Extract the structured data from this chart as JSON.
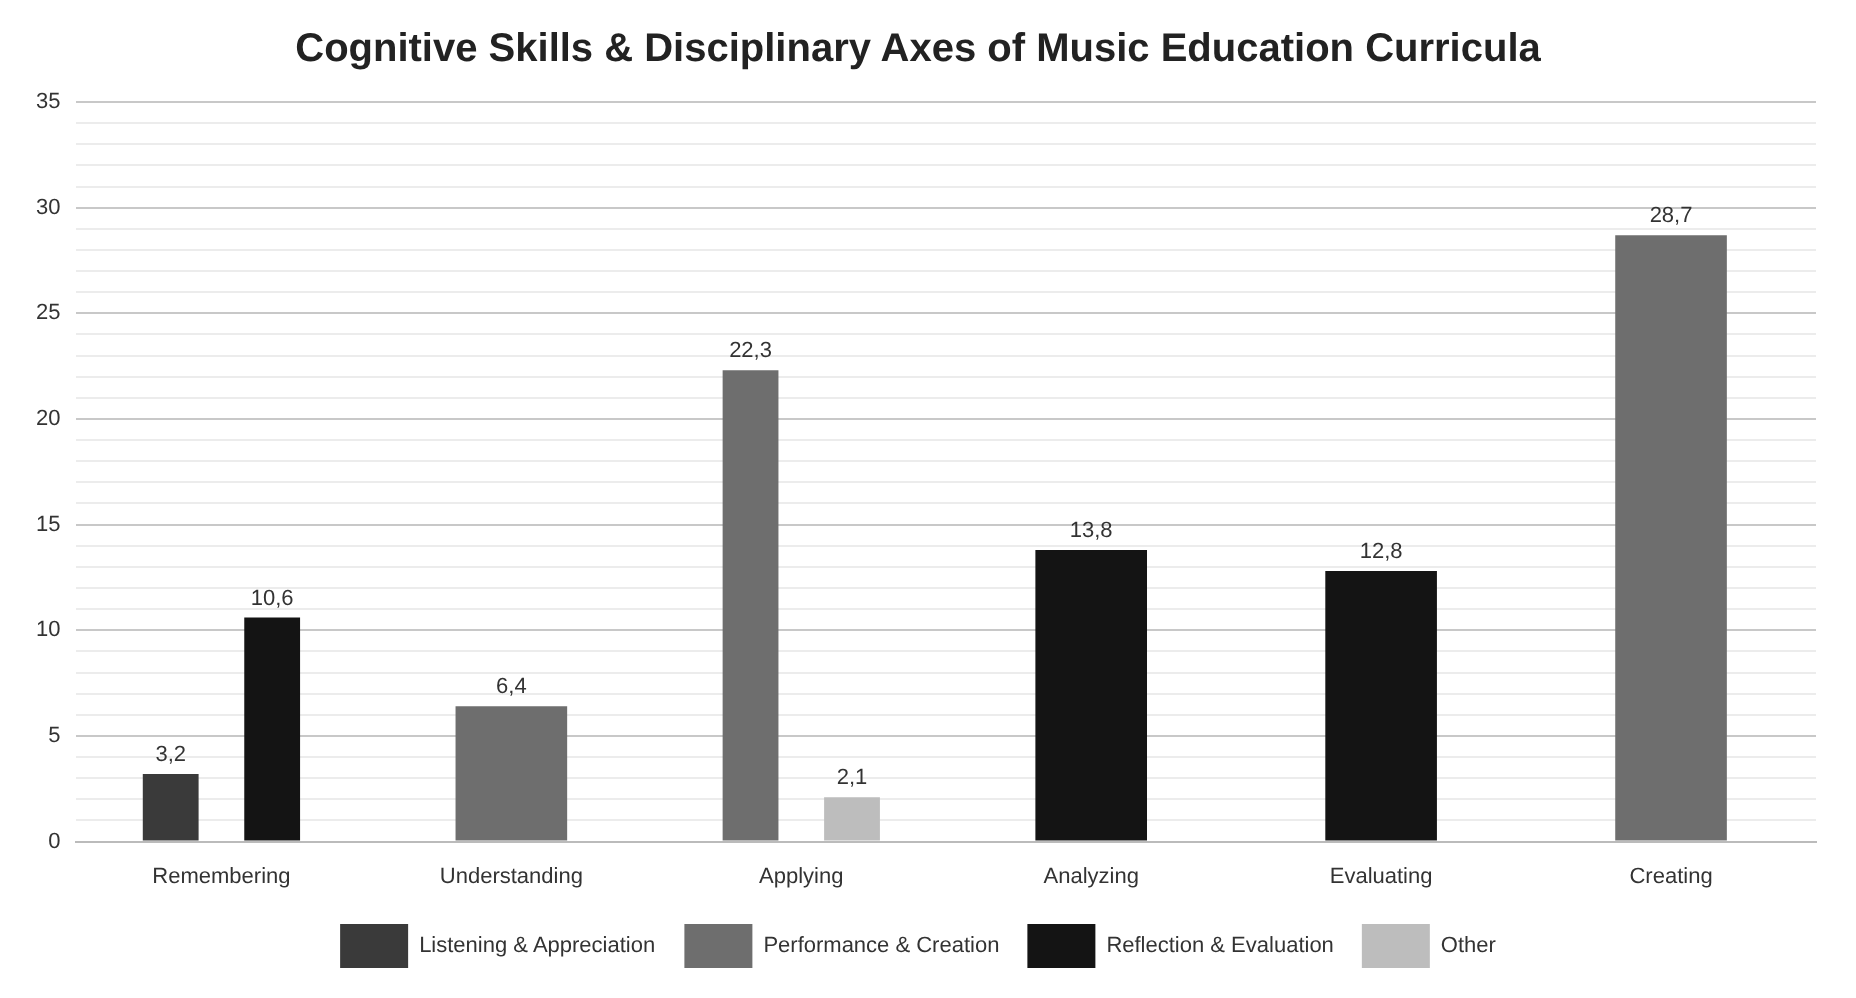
{
  "chart_data": {
    "type": "bar",
    "title": "Cognitive Skills & Disciplinary Axes of Music Education Curricula",
    "categories": [
      "Remembering",
      "Understanding",
      "Applying",
      "Analyzing",
      "Evaluating",
      "Creating"
    ],
    "series": [
      {
        "name": "Listening & Appreciation",
        "color": "#3a3a3a",
        "values": [
          3.2,
          null,
          null,
          null,
          null,
          null
        ],
        "value_labels": [
          "3,2",
          null,
          null,
          null,
          null,
          null
        ]
      },
      {
        "name": "Performance & Creation",
        "color": "#6e6e6e",
        "values": [
          null,
          6.4,
          22.3,
          null,
          null,
          28.7
        ],
        "value_labels": [
          null,
          "6,4",
          "22,3",
          null,
          null,
          "28,7"
        ]
      },
      {
        "name": "Reflection & Evaluation",
        "color": "#141414",
        "values": [
          10.6,
          null,
          null,
          13.8,
          12.8,
          null
        ],
        "value_labels": [
          "10,6",
          null,
          null,
          "13,8",
          "12,8",
          null
        ]
      },
      {
        "name": "Other",
        "color": "#bdbdbd",
        "values": [
          null,
          null,
          2.1,
          null,
          null,
          null
        ],
        "value_labels": [
          null,
          null,
          "2,1",
          null,
          null,
          null
        ]
      }
    ],
    "ylim": [
      0,
      35
    ],
    "yticks": [
      0,
      {
        "value": 1,
        "label": null
      },
      {
        "value": 2,
        "label": null
      },
      {
        "value": 3,
        "label": null
      },
      {
        "value": 4,
        "label": null
      },
      5,
      {
        "value": 6,
        "label": null
      },
      {
        "value": 7,
        "label": null
      },
      {
        "value": 8,
        "label": null
      },
      {
        "value": 9,
        "label": null
      },
      10,
      {
        "value": 11,
        "label": null
      },
      {
        "value": 12,
        "label": null
      },
      {
        "value": 13,
        "label": null
      },
      {
        "value": 14,
        "label": null
      },
      15,
      {
        "value": 16,
        "label": null
      },
      {
        "value": 17,
        "label": null
      },
      {
        "value": 18,
        "label": null
      },
      {
        "value": 19,
        "label": null
      },
      20,
      {
        "value": 21,
        "label": null
      },
      {
        "value": 22,
        "label": null
      },
      {
        "value": 23,
        "label": null
      },
      {
        "value": 24,
        "label": null
      },
      25,
      {
        "value": 26,
        "label": null
      },
      {
        "value": 27,
        "label": null
      },
      {
        "value": 28,
        "label": null
      },
      {
        "value": 29,
        "label": null
      },
      30,
      {
        "value": 31,
        "label": null
      },
      {
        "value": 32,
        "label": null
      },
      {
        "value": 33,
        "label": null
      },
      {
        "value": 34,
        "label": null
      },
      35
    ],
    "grid": "y",
    "legend": "bottom"
  }
}
